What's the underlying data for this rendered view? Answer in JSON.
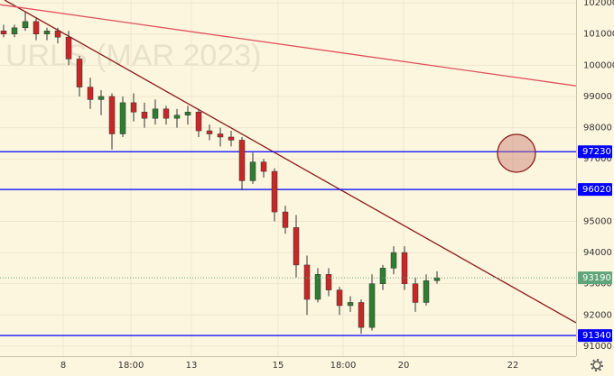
{
  "chart_data": {
    "type": "candlestick",
    "watermark": "URLS (MAR 2023)",
    "x": [
      1,
      4,
      7,
      10,
      13,
      16,
      19,
      22,
      25,
      28,
      31,
      34,
      37,
      40,
      43,
      46,
      49,
      52,
      55,
      58,
      61,
      64,
      67,
      70,
      73,
      76,
      79,
      82,
      85,
      88,
      91,
      94,
      97,
      100,
      103,
      106,
      109,
      112,
      115,
      118,
      121
    ],
    "open": [
      101100,
      101000,
      101200,
      101400,
      101000,
      101100,
      100900,
      100200,
      99300,
      98900,
      99000,
      97800,
      98800,
      98500,
      98300,
      98600,
      98300,
      98400,
      98500,
      97900,
      97800,
      97700,
      97600,
      96300,
      96900,
      96600,
      95300,
      94800,
      93600,
      92500,
      93300,
      92800,
      92300,
      92400,
      91600,
      93000,
      93500,
      94000,
      93000,
      92400,
      93100
    ],
    "high": [
      101300,
      101300,
      101700,
      101500,
      101200,
      101200,
      101100,
      100300,
      99600,
      99200,
      99100,
      99000,
      99100,
      98800,
      98900,
      98700,
      98600,
      98700,
      98600,
      98100,
      98000,
      97900,
      97700,
      97200,
      97000,
      96700,
      95500,
      95200,
      93900,
      93500,
      93500,
      92900,
      92600,
      92500,
      93300,
      93600,
      94200,
      94200,
      93200,
      93300,
      93400
    ],
    "low": [
      100900,
      100900,
      101100,
      100800,
      100800,
      100700,
      100000,
      99000,
      98600,
      98400,
      97300,
      97700,
      98200,
      98000,
      98100,
      98100,
      98000,
      98100,
      97700,
      97600,
      97400,
      97400,
      96000,
      96200,
      96400,
      95000,
      94600,
      93200,
      92000,
      92400,
      92600,
      92000,
      92100,
      91400,
      91500,
      92800,
      93300,
      92800,
      92100,
      92300,
      93000
    ],
    "close": [
      101000,
      101200,
      101400,
      101000,
      101100,
      100900,
      100200,
      99300,
      98900,
      99000,
      97800,
      98800,
      98500,
      98300,
      98600,
      98300,
      98400,
      98500,
      97900,
      97800,
      97700,
      97600,
      96300,
      96900,
      96600,
      95300,
      94800,
      93600,
      92500,
      93300,
      92800,
      92300,
      92400,
      91600,
      93000,
      93500,
      94000,
      93000,
      92400,
      93100,
      93190
    ],
    "up_color": "#2e7d32",
    "down_color": "#c62828",
    "wick_color": "#333333",
    "xlim": [
      0,
      159.5
    ],
    "ylim": [
      90680,
      102090
    ],
    "xticks": [
      {
        "value": 17.5,
        "label": "8"
      },
      {
        "value": 36.25,
        "label": "18:00"
      },
      {
        "value": 53,
        "label": "13"
      },
      {
        "value": 77,
        "label": "15"
      },
      {
        "value": 95,
        "label": "18:00"
      },
      {
        "value": 111.75,
        "label": "20"
      },
      {
        "value": 142,
        "label": "22"
      }
    ],
    "yticks": [
      102000,
      101000,
      100000,
      99000,
      98000,
      97000,
      96000,
      95000,
      94000,
      93000,
      92000,
      91000
    ],
    "grid": true,
    "levels": [
      {
        "value": 97230,
        "color": "#0000ff"
      },
      {
        "value": 96020,
        "color": "#0000ff"
      },
      {
        "value": 91340,
        "color": "#0000ff"
      }
    ],
    "last_price": {
      "value": 93190,
      "color": "#5fa57a"
    },
    "trendlines": [
      {
        "color": "#8b1a1a",
        "x": [
          1.25,
          159.5
        ],
        "y": [
          102090,
          91750
        ]
      },
      {
        "color": "#e0505a",
        "x": [
          0,
          159.5
        ],
        "y": [
          101940,
          99340
        ]
      }
    ]
  }
}
